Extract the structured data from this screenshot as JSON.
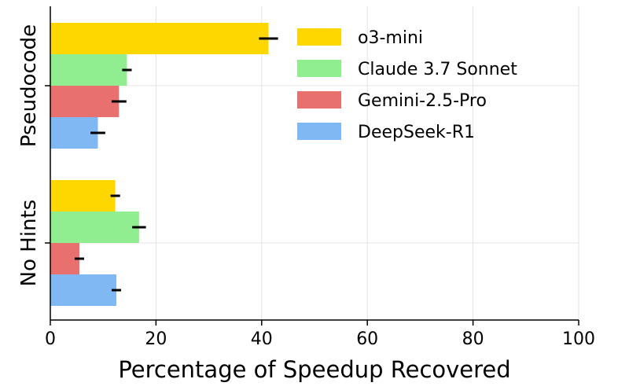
{
  "chart_data": {
    "type": "bar",
    "orientation": "horizontal",
    "title": "",
    "xlabel": "Percentage of Speedup Recovered",
    "ylabel": "",
    "xlim": [
      0,
      100
    ],
    "xticks": [
      0,
      20,
      40,
      60,
      80,
      100
    ],
    "grid": true,
    "legend_position": "top-right",
    "categories": [
      "Pseudocode",
      "No Hints"
    ],
    "series": [
      {
        "name": "o3-mini",
        "color": "#FFD700",
        "values": [
          41.3,
          12.3
        ],
        "errors": [
          1.8,
          0.9
        ]
      },
      {
        "name": "Claude 3.7 Sonnet",
        "color": "#90EE90",
        "values": [
          14.5,
          16.8
        ],
        "errors": [
          0.9,
          1.3
        ]
      },
      {
        "name": "Gemini-2.5-Pro",
        "color": "#E8706E",
        "values": [
          13.0,
          5.5
        ],
        "errors": [
          1.4,
          0.9
        ]
      },
      {
        "name": "DeepSeek-R1",
        "color": "#80B8F4",
        "values": [
          9.0,
          12.5
        ],
        "errors": [
          1.4,
          0.9
        ]
      }
    ]
  }
}
